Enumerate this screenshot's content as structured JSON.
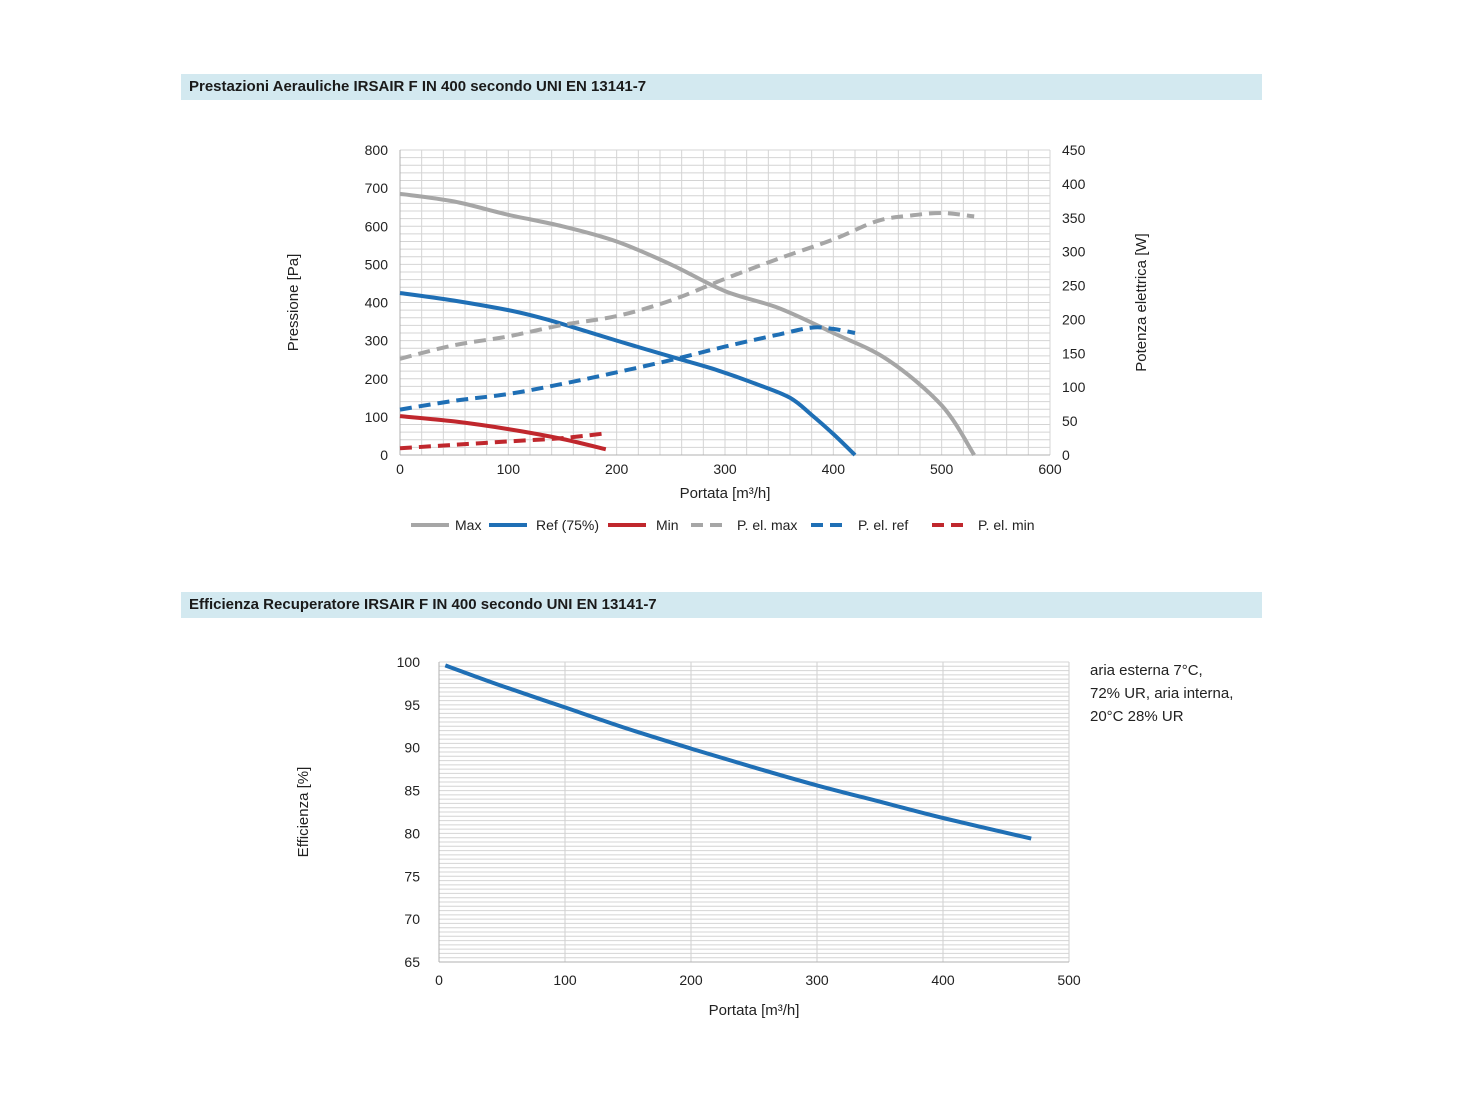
{
  "charts": [
    {
      "header": "Prestazioni Aerauliche IRSAIR F IN 400 secondo UNI EN 13141-7"
    },
    {
      "header": "Efficienza Recuperatore IRSAIR F IN 400 secondo UNI EN 13141-7",
      "note_lines": [
        "aria esterna 7°C,",
        "72% UR, aria interna,",
        "20°C 28% UR"
      ]
    }
  ],
  "colors": {
    "gray": "#a6a6a6",
    "blue": "#1f6fb5",
    "red": "#c0272d",
    "grid": "#c8c8c8",
    "header_bg": "#d3e9f0"
  },
  "chart_data": [
    {
      "type": "line",
      "title": "Prestazioni Aerauliche IRSAIR F IN 400 secondo UNI EN 13141-7",
      "xlabel": "Portata [m³/h]",
      "ylabel": "Pressione [Pa]",
      "y2label": "Potenza elettrica [W]",
      "xlim": [
        0,
        600
      ],
      "ylim": [
        0,
        800
      ],
      "y2lim": [
        0,
        450
      ],
      "x_ticks": [
        0,
        100,
        200,
        300,
        400,
        500,
        600
      ],
      "y_ticks": [
        0,
        100,
        200,
        300,
        400,
        500,
        600,
        700,
        800
      ],
      "y2_ticks": [
        0,
        50,
        100,
        150,
        200,
        250,
        300,
        350,
        400,
        450
      ],
      "grid": true,
      "legend_position": "bottom",
      "series": [
        {
          "name": "Max",
          "axis": "left",
          "color": "gray",
          "dash": false,
          "x": [
            0,
            50,
            100,
            150,
            200,
            250,
            300,
            350,
            400,
            450,
            500,
            530
          ],
          "y": [
            685,
            665,
            630,
            600,
            560,
            500,
            430,
            385,
            320,
            250,
            130,
            0
          ]
        },
        {
          "name": "Ref (75%)",
          "axis": "left",
          "color": "blue",
          "dash": false,
          "x": [
            0,
            50,
            100,
            130,
            160,
            200,
            250,
            290,
            330,
            360,
            380,
            400,
            420
          ],
          "y": [
            425,
            405,
            380,
            360,
            335,
            300,
            258,
            225,
            185,
            150,
            105,
            55,
            0
          ]
        },
        {
          "name": "Min",
          "axis": "left",
          "color": "red",
          "dash": false,
          "x": [
            0,
            50,
            100,
            150,
            190
          ],
          "y": [
            102,
            88,
            68,
            42,
            15
          ]
        },
        {
          "name": "P. el. max",
          "axis": "right",
          "color": "gray",
          "dash": true,
          "x": [
            0,
            50,
            100,
            150,
            200,
            250,
            300,
            350,
            400,
            440,
            470,
            500,
            530
          ],
          "y": [
            142,
            162,
            175,
            192,
            205,
            228,
            260,
            290,
            318,
            345,
            353,
            357,
            352
          ]
        },
        {
          "name": "P. el. ref",
          "axis": "right",
          "color": "blue",
          "dash": true,
          "x": [
            0,
            50,
            100,
            150,
            200,
            250,
            300,
            350,
            380,
            400,
            420
          ],
          "y": [
            67,
            80,
            90,
            105,
            122,
            140,
            160,
            178,
            188,
            186,
            180
          ]
        },
        {
          "name": "P. el. min",
          "axis": "right",
          "color": "red",
          "dash": true,
          "x": [
            0,
            50,
            100,
            150,
            190
          ],
          "y": [
            10,
            15,
            20,
            25,
            32
          ]
        }
      ]
    },
    {
      "type": "line",
      "title": "Efficienza Recuperatore IRSAIR F IN 400 secondo UNI EN 13141-7",
      "xlabel": "Portata [m³/h]",
      "ylabel": "Efficienza [%]",
      "xlim": [
        0,
        500
      ],
      "ylim": [
        65,
        100
      ],
      "x_ticks": [
        0,
        100,
        200,
        300,
        400,
        500
      ],
      "y_ticks": [
        65,
        70,
        75,
        80,
        85,
        90,
        95,
        100
      ],
      "grid": true,
      "series": [
        {
          "name": "Efficienza",
          "axis": "left",
          "color": "blue",
          "dash": false,
          "x": [
            5,
            50,
            100,
            150,
            200,
            250,
            300,
            350,
            400,
            470
          ],
          "y": [
            99.6,
            97.2,
            94.7,
            92.2,
            89.9,
            87.7,
            85.6,
            83.7,
            81.8,
            79.4
          ]
        }
      ]
    }
  ]
}
